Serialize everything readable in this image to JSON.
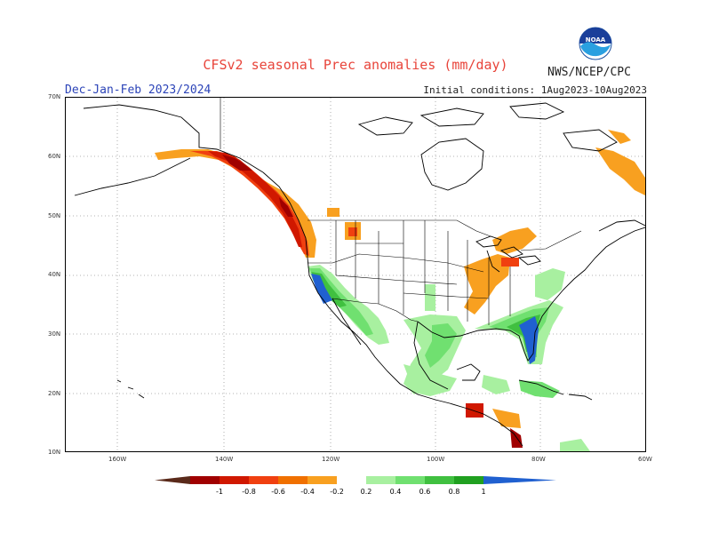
{
  "header": {
    "title": "CFSv2 seasonal Prec anomalies (mm/day)",
    "season": "Dec-Jan-Feb 2023/2024",
    "init_conditions": "Initial conditions: 1Aug2023-10Aug2023",
    "agency": "NWS/NCEP/CPC",
    "logo_text": "NOAA"
  },
  "axes": {
    "lat_labels": [
      "70N",
      "60N",
      "50N",
      "40N",
      "30N",
      "20N",
      "10N"
    ],
    "lon_labels": [
      "160W",
      "140W",
      "120W",
      "100W",
      "80W",
      "60W"
    ]
  },
  "legend": {
    "labels": [
      "-1",
      "-0.8",
      "-0.6",
      "-0.4",
      "-0.2",
      "0.2",
      "0.4",
      "0.6",
      "0.8",
      "1"
    ],
    "colors": [
      "#5a2a1a",
      "#a00000",
      "#d01800",
      "#f04010",
      "#f07000",
      "#f8a020",
      "#ffffff",
      "#a8f0a0",
      "#70e070",
      "#40c040",
      "#20a020",
      "#2060d0"
    ]
  }
}
